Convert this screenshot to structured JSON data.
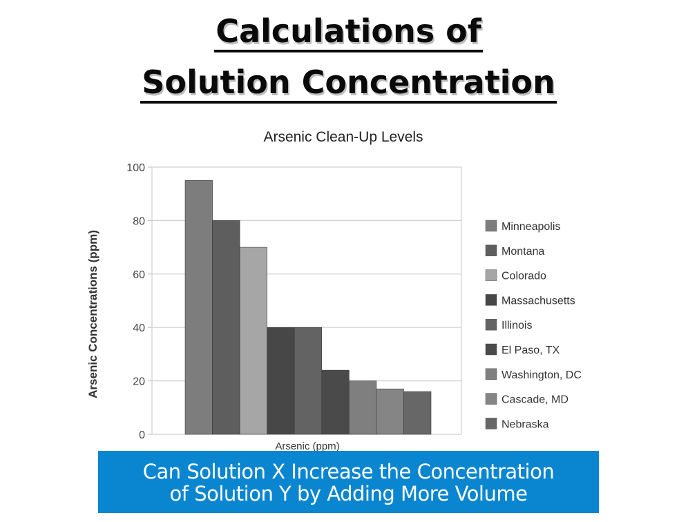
{
  "header": {
    "line1": "Calculations of",
    "line2": "Solution Concentration"
  },
  "banner": {
    "line1": "Can Solution X Increase the Concentration",
    "line2": "of Solution Y by Adding More Volume"
  },
  "chart_data": {
    "type": "bar",
    "title": "Arsenic Clean-Up Levels",
    "xlabel": "Arsenic (ppm)",
    "ylabel": "Arsenic Concentrations (ppm)",
    "ylim": [
      0,
      100
    ],
    "yticks": [
      0,
      20,
      40,
      60,
      80,
      100
    ],
    "grid": true,
    "legend": "right",
    "categories": [
      "Arsenic (ppm)"
    ],
    "series": [
      {
        "name": "Minneapolis",
        "values": [
          95
        ],
        "color": "#7d7d7d"
      },
      {
        "name": "Montana",
        "values": [
          80
        ],
        "color": "#5e5e5e"
      },
      {
        "name": "Colorado",
        "values": [
          70
        ],
        "color": "#a6a6a6"
      },
      {
        "name": "Massachusetts",
        "values": [
          40
        ],
        "color": "#474747"
      },
      {
        "name": "Illinois",
        "values": [
          40
        ],
        "color": "#636363"
      },
      {
        "name": "El Paso, TX",
        "values": [
          24
        ],
        "color": "#4a4a4a"
      },
      {
        "name": "Washington, DC",
        "values": [
          20
        ],
        "color": "#7f7f7f"
      },
      {
        "name": "Cascade, MD",
        "values": [
          17
        ],
        "color": "#858585"
      },
      {
        "name": "Nebraska",
        "values": [
          16
        ],
        "color": "#676767"
      }
    ]
  }
}
